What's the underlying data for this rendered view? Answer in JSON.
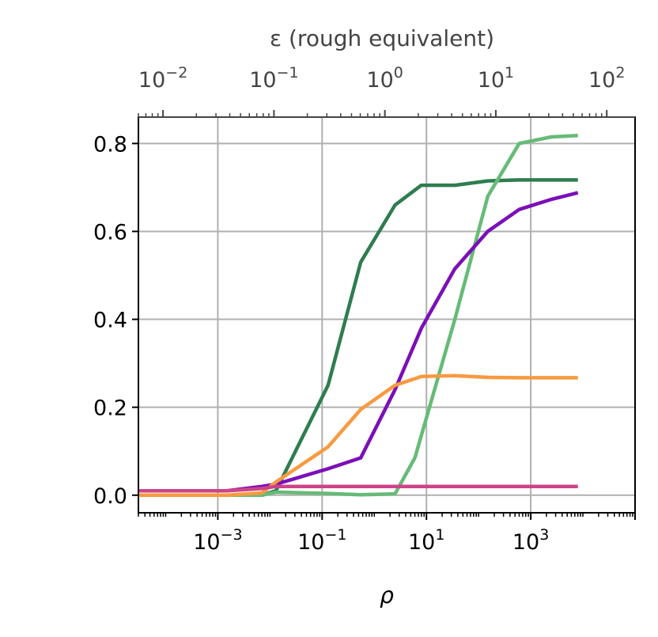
{
  "chart_data": {
    "type": "line",
    "title": "",
    "xlabel": "ρ",
    "x_scale": "log",
    "xlim": [
      3e-05,
      100000
    ],
    "ylim": [
      -0.04,
      0.86
    ],
    "grid": true,
    "x_ticks": [
      0.001,
      0.1,
      10,
      1000
    ],
    "x_tick_labels": [
      {
        "base": "10",
        "exp": "−3"
      },
      {
        "base": "10",
        "exp": "−1"
      },
      {
        "base": "10",
        "exp": "1"
      },
      {
        "base": "10",
        "exp": "3"
      }
    ],
    "y_ticks": [
      0.0,
      0.2,
      0.4,
      0.6,
      0.8
    ],
    "y_tick_labels": [
      "0.0",
      "0.2",
      "0.4",
      "0.6",
      "0.8"
    ],
    "top_axis": {
      "label": "ε (rough equivalent)",
      "scale": "log",
      "xlim": [
        0.006,
        180
      ],
      "ticks": [
        0.01,
        0.1,
        1,
        10,
        100
      ],
      "tick_labels": [
        {
          "base": "10",
          "exp": "−2"
        },
        {
          "base": "10",
          "exp": "−1"
        },
        {
          "base": "10",
          "exp": "0"
        },
        {
          "base": "10",
          "exp": "1"
        },
        {
          "base": "10",
          "exp": "2"
        }
      ]
    },
    "series": [
      {
        "color": "#2e7d4f",
        "x": [
          3e-05,
          0.0015,
          0.007,
          0.013,
          0.13,
          0.55,
          2.5,
          8,
          35,
          150,
          600,
          2500,
          8000
        ],
        "y": [
          0.0,
          0.0,
          0.0,
          0.01,
          0.25,
          0.53,
          0.66,
          0.705,
          0.705,
          0.715,
          0.717,
          0.717,
          0.717
        ]
      },
      {
        "color": "#66bb77",
        "x": [
          3e-05,
          0.0015,
          0.007,
          0.013,
          0.13,
          0.55,
          2.5,
          6,
          35,
          150,
          600,
          2500,
          8000
        ],
        "y": [
          0.0,
          0.0,
          0.0,
          0.007,
          0.004,
          0.001,
          0.003,
          0.085,
          0.4,
          0.68,
          0.8,
          0.815,
          0.818
        ]
      },
      {
        "color": "#7b0fb8",
        "x": [
          3e-05,
          0.0015,
          0.007,
          0.013,
          0.13,
          0.55,
          2.5,
          8,
          35,
          150,
          600,
          2500,
          8000
        ],
        "y": [
          0.01,
          0.01,
          0.02,
          0.025,
          0.06,
          0.085,
          0.24,
          0.38,
          0.515,
          0.6,
          0.65,
          0.673,
          0.688
        ]
      },
      {
        "color": "#f89a40",
        "x": [
          3e-05,
          0.0015,
          0.007,
          0.013,
          0.13,
          0.55,
          2.5,
          8,
          35,
          150,
          600,
          2500,
          8000
        ],
        "y": [
          0.0,
          0.0,
          0.005,
          0.03,
          0.11,
          0.195,
          0.25,
          0.27,
          0.272,
          0.268,
          0.267,
          0.267,
          0.267
        ]
      },
      {
        "color": "#cc4488",
        "x": [
          3e-05,
          0.0015,
          0.007,
          0.013,
          0.13,
          0.55,
          2.5,
          8,
          35,
          150,
          600,
          2500,
          8000
        ],
        "y": [
          0.01,
          0.01,
          0.015,
          0.02,
          0.02,
          0.02,
          0.02,
          0.02,
          0.02,
          0.02,
          0.02,
          0.02,
          0.02
        ]
      }
    ]
  }
}
